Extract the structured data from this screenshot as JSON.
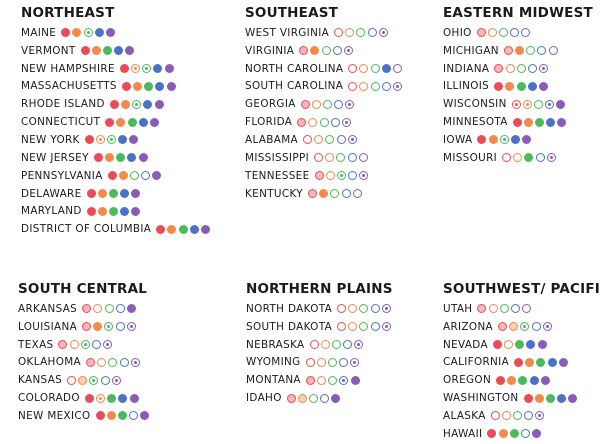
{
  "colors": {
    "red": "#eb4b57",
    "orange": "#f28b4a",
    "green": "#4cb95c",
    "blue": "#4a72c8",
    "purple": "#8a5cb8"
  },
  "dot_order": [
    "red",
    "orange",
    "green",
    "blue",
    "purple"
  ],
  "regions": [
    {
      "title": "NORTHEAST",
      "states": [
        {
          "name": "MAINE",
          "dots": [
            "filled",
            "filled",
            "centered",
            "filled",
            "filled"
          ]
        },
        {
          "name": "VERMONT",
          "dots": [
            "filled",
            "filled",
            "filled",
            "filled",
            "filled"
          ]
        },
        {
          "name": "NEW HAMPSHIRE",
          "dots": [
            "filled",
            "centered",
            "centered",
            "filled",
            "filled"
          ]
        },
        {
          "name": "MASSACHUSETTS",
          "dots": [
            "filled",
            "filled",
            "filled",
            "filled",
            "filled"
          ]
        },
        {
          "name": "RHODE ISLAND",
          "dots": [
            "filled",
            "filled",
            "centered",
            "filled",
            "filled"
          ]
        },
        {
          "name": "CONNECTICUT",
          "dots": [
            "filled",
            "filled",
            "filled",
            "filled",
            "filled"
          ]
        },
        {
          "name": "NEW YORK",
          "dots": [
            "filled",
            "centered",
            "centered",
            "filled",
            "filled"
          ]
        },
        {
          "name": "NEW JERSEY",
          "dots": [
            "filled",
            "filled",
            "filled",
            "filled",
            "filled"
          ]
        },
        {
          "name": "PENNSYLVANIA",
          "dots": [
            "filled",
            "filled",
            "outline",
            "outline",
            "filled"
          ]
        },
        {
          "name": "DELAWARE",
          "dots": [
            "filled",
            "filled",
            "filled",
            "filled",
            "filled"
          ]
        },
        {
          "name": "MARYLAND",
          "dots": [
            "filled",
            "filled",
            "filled",
            "filled",
            "filled"
          ]
        },
        {
          "name": "DISTRICT OF COLUMBIA",
          "dots": [
            "filled",
            "filled",
            "filled",
            "filled",
            "filled"
          ]
        }
      ]
    },
    {
      "title": "SOUTHEAST",
      "states": [
        {
          "name": "WEST VIRGINIA",
          "dots": [
            "outline",
            "outline",
            "outline",
            "outline",
            "centered"
          ]
        },
        {
          "name": "VIRGINIA",
          "dots": [
            "tinted",
            "filled",
            "outline",
            "outline",
            "centered"
          ]
        },
        {
          "name": "NORTH CAROLINA",
          "dots": [
            "outline",
            "outline",
            "outline",
            "filled",
            "outline"
          ]
        },
        {
          "name": "SOUTH CAROLINA",
          "dots": [
            "outline",
            "outline",
            "outline",
            "outline",
            "centered"
          ]
        },
        {
          "name": "GEORGIA",
          "dots": [
            "tinted",
            "outline",
            "outline",
            "outline",
            "centered"
          ]
        },
        {
          "name": "FLORIDA",
          "dots": [
            "tinted",
            "outline",
            "outline",
            "outline",
            "centered"
          ]
        },
        {
          "name": "ALABAMA",
          "dots": [
            "outline",
            "outline",
            "outline",
            "outline",
            "centered"
          ]
        },
        {
          "name": "MISSISSIPPI",
          "dots": [
            "outline",
            "outline",
            "outline",
            "outline",
            "outline"
          ]
        },
        {
          "name": "TENNESSEE",
          "dots": [
            "tinted",
            "outline",
            "centered",
            "outline",
            "centered"
          ]
        },
        {
          "name": "KENTUCKY",
          "dots": [
            "tinted",
            "filled",
            "outline",
            "outline",
            "outline"
          ]
        }
      ]
    },
    {
      "title": "EASTERN MIDWEST",
      "states": [
        {
          "name": "OHIO",
          "dots": [
            "tinted",
            "outline",
            "outline",
            "outline",
            "outline"
          ]
        },
        {
          "name": "MICHIGAN",
          "dots": [
            "tinted",
            "filled",
            "outline",
            "outline",
            "outline"
          ]
        },
        {
          "name": "INDIANA",
          "dots": [
            "tinted",
            "outline",
            "outline",
            "outline",
            "centered"
          ]
        },
        {
          "name": "ILLINOIS",
          "dots": [
            "filled",
            "filled",
            "filled",
            "filled",
            "filled"
          ]
        },
        {
          "name": "WISCONSIN",
          "dots": [
            "centered",
            "centered",
            "outline",
            "centered",
            "filled"
          ]
        },
        {
          "name": "MINNESOTA",
          "dots": [
            "filled",
            "filled",
            "filled",
            "filled",
            "filled"
          ]
        },
        {
          "name": "IOWA",
          "dots": [
            "filled",
            "filled",
            "centered",
            "filled",
            "filled"
          ]
        },
        {
          "name": "MISSOURI",
          "dots": [
            "outline",
            "outline",
            "filled",
            "outline",
            "centered"
          ]
        }
      ]
    },
    {
      "title": "SOUTH CENTRAL",
      "states": [
        {
          "name": "ARKANSAS",
          "dots": [
            "tinted",
            "outline",
            "outline",
            "outline",
            "filled"
          ]
        },
        {
          "name": "LOUISIANA",
          "dots": [
            "tinted",
            "filled",
            "centered",
            "outline",
            "centered"
          ]
        },
        {
          "name": "TEXAS",
          "dots": [
            "tinted",
            "outline",
            "centered",
            "outline",
            "centered"
          ]
        },
        {
          "name": "OKLAHOMA",
          "dots": [
            "tinted",
            "outline",
            "outline",
            "outline",
            "centered"
          ]
        },
        {
          "name": "KANSAS",
          "dots": [
            "outline",
            "tinted",
            "centered",
            "outline",
            "centered"
          ]
        },
        {
          "name": "COLORADO",
          "dots": [
            "filled",
            "centered",
            "filled",
            "filled",
            "filled"
          ]
        },
        {
          "name": "NEW MEXICO",
          "dots": [
            "filled",
            "filled",
            "filled",
            "outline",
            "filled"
          ]
        }
      ]
    },
    {
      "title": "NORTHERN PLAINS",
      "states": [
        {
          "name": "NORTH DAKOTA",
          "dots": [
            "outline",
            "outline",
            "outline",
            "outline",
            "centered"
          ]
        },
        {
          "name": "SOUTH DAKOTA",
          "dots": [
            "outline",
            "outline",
            "outline",
            "outline",
            "centered"
          ]
        },
        {
          "name": "NEBRASKA",
          "dots": [
            "outline",
            "outline",
            "outline",
            "outline",
            "centered"
          ]
        },
        {
          "name": "WYOMING",
          "dots": [
            "outline",
            "outline",
            "outline",
            "outline",
            "centered"
          ]
        },
        {
          "name": "MONTANA",
          "dots": [
            "tinted",
            "outline",
            "outline",
            "centered",
            "filled"
          ]
        },
        {
          "name": "IDAHO",
          "dots": [
            "tinted",
            "tinted",
            "outline",
            "outline",
            "filled"
          ]
        }
      ]
    },
    {
      "title": "SOUTHWEST/ PACIFIC",
      "states": [
        {
          "name": "UTAH",
          "dots": [
            "tinted",
            "outline",
            "outline",
            "outline",
            "outline"
          ]
        },
        {
          "name": "ARIZONA",
          "dots": [
            "tinted",
            "tinted",
            "centered",
            "outline",
            "centered"
          ]
        },
        {
          "name": "NEVADA",
          "dots": [
            "filled",
            "outline",
            "filled",
            "filled",
            "filled"
          ]
        },
        {
          "name": "CALIFORNIA",
          "dots": [
            "filled",
            "filled",
            "filled",
            "filled",
            "filled"
          ]
        },
        {
          "name": "OREGON",
          "dots": [
            "filled",
            "filled",
            "filled",
            "filled",
            "filled"
          ]
        },
        {
          "name": "WASHINGTON",
          "dots": [
            "filled",
            "filled",
            "filled",
            "filled",
            "filled"
          ]
        },
        {
          "name": "ALASKA",
          "dots": [
            "outline",
            "outline",
            "outline",
            "outline",
            "centered"
          ]
        },
        {
          "name": "HAWAII",
          "dots": [
            "filled",
            "filled",
            "filled",
            "outline",
            "filled"
          ]
        }
      ]
    }
  ]
}
